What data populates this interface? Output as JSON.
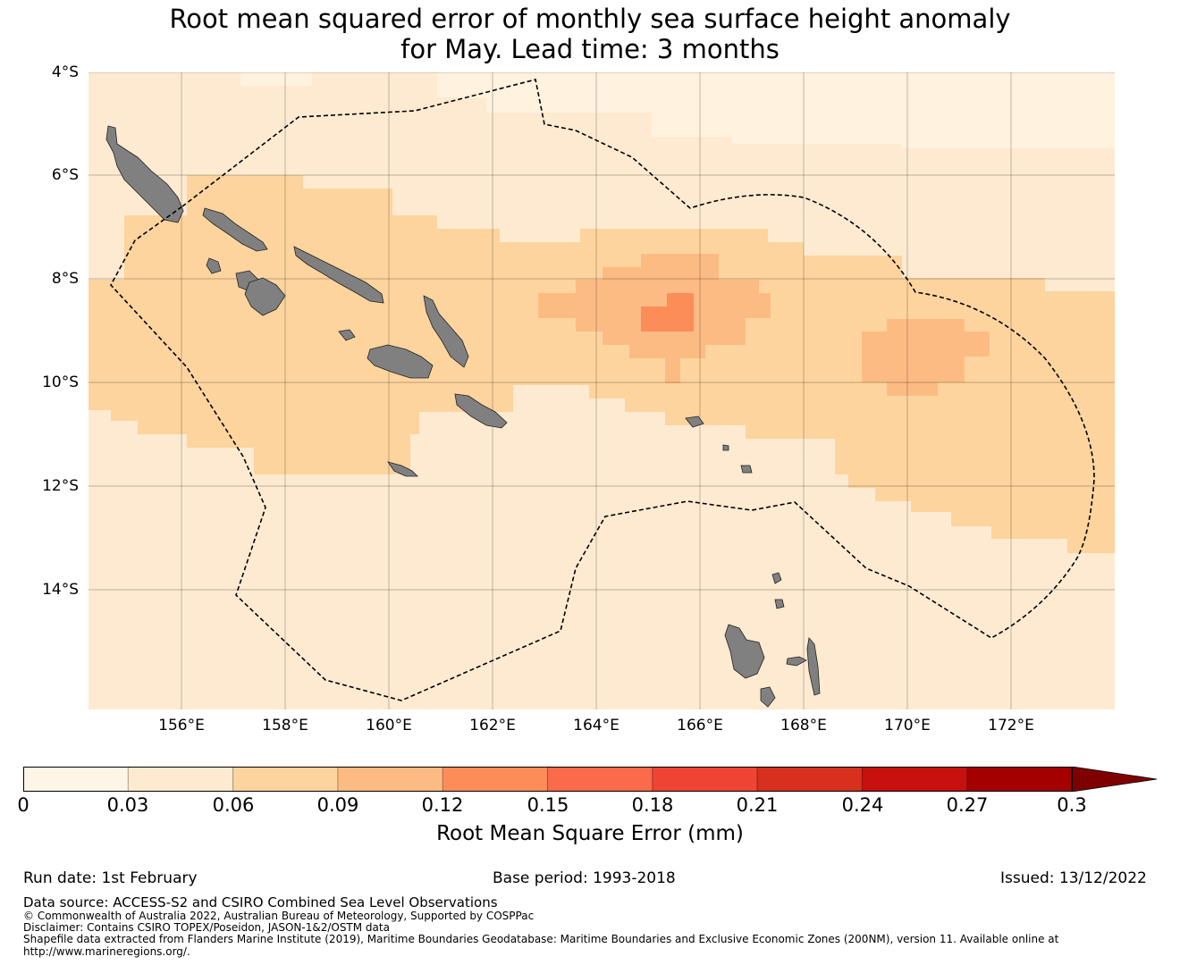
{
  "title": {
    "line1": "Root mean squared error of monthly sea surface height anomaly",
    "line2": "for May. Lead time: 3 months"
  },
  "map": {
    "latitude_labels": [
      "4°S",
      "6°S",
      "8°S",
      "10°S",
      "12°S",
      "14°S"
    ],
    "longitude_labels": [
      "156°E",
      "158°E",
      "160°E",
      "162°E",
      "164°E",
      "166°E",
      "168°E",
      "170°E",
      "172°E"
    ],
    "land_color": "#808080",
    "boundary_style": "dashed black (EEZ)"
  },
  "colorbar": {
    "ticks": [
      "0",
      "0.03",
      "0.06",
      "0.09",
      "0.12",
      "0.15",
      "0.18",
      "0.21",
      "0.24",
      "0.27",
      "0.3"
    ],
    "colors": [
      "#fff5e6",
      "#feead1",
      "#fdd49e",
      "#fdbb84",
      "#fc8d59",
      "#fb6a4a",
      "#ef4434",
      "#d7301f",
      "#c8100e",
      "#a50000",
      "#7f0000"
    ],
    "label": "Root Mean Square Error (mm)",
    "extend": "max"
  },
  "footer": {
    "run_date": "Run date: 1st February",
    "base_period": "Base period: 1993-2018",
    "issued": "Issued: 13/12/2022",
    "data_source": "Data source: ACCESS-S2 and CSIRO Combined Sea Level Observations",
    "copyright": "© Commonwealth of Australia 2022, Australian Bureau of Meteorology, Supported by COSPPac",
    "disclaimer": "Disclaimer: Contains CSIRO TOPEX/Poseidon, JASON-1&2/OSTM data",
    "shapefile_1": "Shapefile data extracted from Flanders Marine Institute (2019), Maritime Boundaries Geodatabase: Maritime Boundaries and Exclusive Economic Zones (200NM), version 11. Available online at",
    "shapefile_2": "http://www.marineregions.org/."
  }
}
